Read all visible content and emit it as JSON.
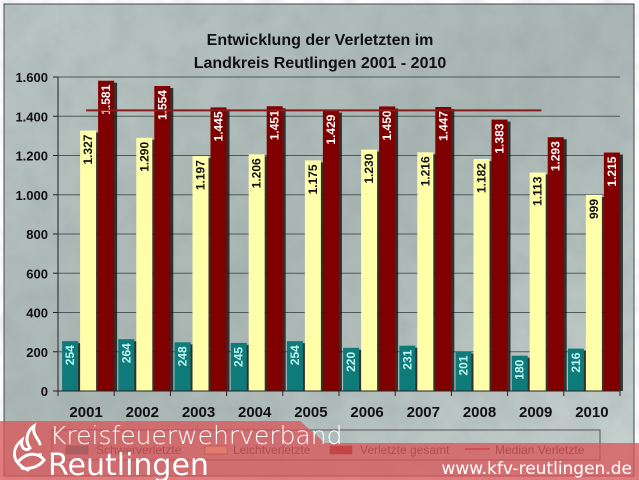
{
  "chart_data": {
    "type": "bar",
    "title_lines": [
      "Entwicklung der Verletzten im",
      "Landkreis Reutlingen 2001 - 2010"
    ],
    "categories": [
      "2001",
      "2002",
      "2003",
      "2004",
      "2005",
      "2006",
      "2007",
      "2008",
      "2009",
      "2010"
    ],
    "series": [
      {
        "name": "Schwerverletzte",
        "color": "#0f7a7a",
        "label_color": "#bff5ee",
        "values": [
          254,
          264,
          248,
          245,
          254,
          220,
          231,
          201,
          180,
          216
        ],
        "labels": [
          "254",
          "264",
          "248",
          "245",
          "254",
          "220",
          "231",
          "201",
          "180",
          "216"
        ]
      },
      {
        "name": "Leichtverletzte",
        "color": "#ffffaa",
        "label_color": "#111111",
        "values": [
          1327,
          1290,
          1197,
          1206,
          1175,
          1230,
          1216,
          1182,
          1113,
          999
        ],
        "labels": [
          "1.327",
          "1.290",
          "1.197",
          "1.206",
          "1.175",
          "1.230",
          "1.216",
          "1.182",
          "1.113",
          "999"
        ]
      },
      {
        "name": "Verletzte gesamt",
        "color": "#800000",
        "label_color": "#ffffff",
        "values": [
          1581,
          1554,
          1445,
          1451,
          1429,
          1450,
          1447,
          1383,
          1293,
          1215
        ],
        "labels": [
          "1.581",
          "1.554",
          "1.445",
          "1.451",
          "1.429",
          "1.450",
          "1.447",
          "1.383",
          "1.293",
          "1.215"
        ]
      }
    ],
    "median_line": {
      "name": "Median Verletzte",
      "value": 1430,
      "color": "#8b1a1a",
      "from_category": "2001",
      "to_category": "2009"
    },
    "xlabel": "",
    "ylabel": "",
    "ylim": [
      0,
      1600
    ],
    "yticks": [
      0,
      200,
      400,
      600,
      800,
      1000,
      1200,
      1400,
      1600
    ],
    "ytick_labels": [
      "0",
      "200",
      "400",
      "600",
      "800",
      "1.000",
      "1.200",
      "1.400",
      "1.600"
    ],
    "grid": true,
    "legend_position": "bottom",
    "legend": [
      {
        "label": "Schwerverletzte",
        "kind": "box",
        "color": "#0f7a7a"
      },
      {
        "label": "Leichtverletzte",
        "kind": "box",
        "color": "#ffffaa"
      },
      {
        "label": "Verletzte gesamt",
        "kind": "box",
        "color": "#800000"
      },
      {
        "label": "Median Verletzte",
        "kind": "line",
        "color": "#8b1a1a"
      }
    ]
  },
  "branding": {
    "line1": "Kreisfeuerwehrverband",
    "line2": "Reutlingen",
    "url": "www.kfv-reutlingen.de",
    "band_color": "#d9575b"
  }
}
